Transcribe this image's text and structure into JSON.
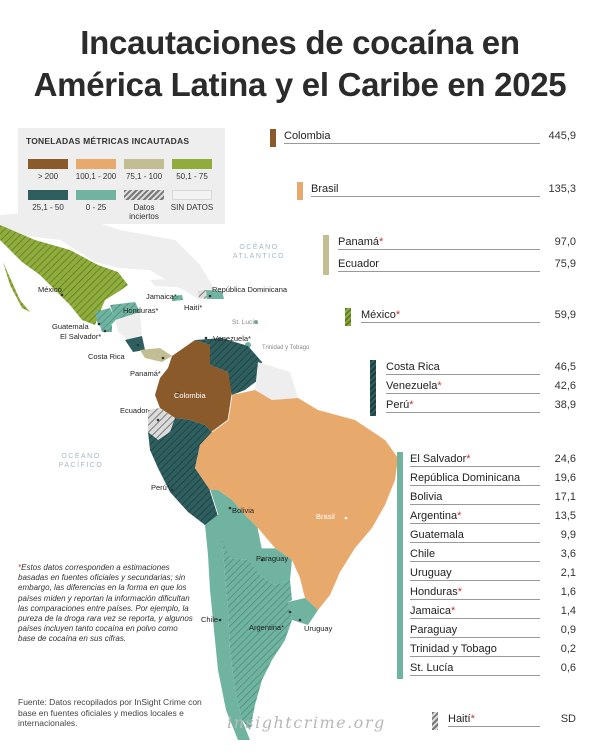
{
  "title": {
    "line1": "Incautaciones de cocaína en",
    "line2": "América Latina y el Caribe en 2025"
  },
  "legend": {
    "title": "TONELADAS MÉTRICAS INCAUTADAS",
    "items": [
      {
        "label": "> 200",
        "color": "#8b5a2b"
      },
      {
        "label": "100,1 - 200",
        "color": "#e8aa6c"
      },
      {
        "label": "75,1 - 100",
        "color": "#c2bd92"
      },
      {
        "label": "50,1 - 75",
        "color": "#8fac3c"
      },
      {
        "label": "25,1 - 50",
        "color": "#2f5e5f"
      },
      {
        "label": "0 - 25",
        "color": "#6fb3a0"
      },
      {
        "label": "Datos inciertos",
        "pattern": "hatch"
      },
      {
        "label": "SIN DATOS",
        "color": "#f2f2f2"
      }
    ]
  },
  "oceans": {
    "atlantic": "OCÉANO ATLÁNTICO",
    "pacific": "OCÉANO PACÍFICO"
  },
  "map_labels": {
    "mexico": "México",
    "jamaica": "Jamaica*",
    "rep_dom": "República Dominicana",
    "honduras": "Honduras*",
    "haiti": "Haití*",
    "guatemala": "Guatemala",
    "el_salvador": "El Salvador*",
    "st_lucia": "St. Lucía",
    "venezuela": "Venezuela*",
    "trinidad": "Trinidad y Tobago",
    "costa_rica": "Costa Rica",
    "panama": "Panamá*",
    "colombia": "Colombia",
    "ecuador": "Ecuador",
    "peru": "Perú*",
    "brasil": "Brasil",
    "bolivia": "Bolivia",
    "paraguay": "Paraguay",
    "chile": "Chile",
    "argentina": "Argentina*",
    "uruguay": "Uruguay"
  },
  "ranking": [
    {
      "country": "Colombia",
      "asterisk": false,
      "value": "445,9",
      "color": "#8b5a2b"
    },
    {
      "country": "Brasil",
      "asterisk": false,
      "value": "135,3",
      "color": "#e8aa6c"
    },
    {
      "country": "Panamá",
      "asterisk": true,
      "value": "97,0",
      "color": "#c2bd92"
    },
    {
      "country": "Ecuador",
      "asterisk": false,
      "value": "75,9",
      "color": "#c2bd92"
    },
    {
      "country": "México",
      "asterisk": true,
      "value": "59,9",
      "color": "#8fac3c"
    },
    {
      "country": "Costa Rica",
      "asterisk": false,
      "value": "46,5",
      "color": "#2f5e5f"
    },
    {
      "country": "Venezuela",
      "asterisk": true,
      "value": "42,6",
      "color": "#2f5e5f"
    },
    {
      "country": "Perú",
      "asterisk": true,
      "value": "38,9",
      "color": "#2f5e5f"
    },
    {
      "country": "El Salvador",
      "asterisk": true,
      "value": "24,6",
      "color": "#6fb3a0"
    },
    {
      "country": "República Dominicana",
      "asterisk": false,
      "value": "19,6",
      "color": "#6fb3a0"
    },
    {
      "country": "Bolivia",
      "asterisk": false,
      "value": "17,1",
      "color": "#6fb3a0"
    },
    {
      "country": "Argentina",
      "asterisk": true,
      "value": "13,5",
      "color": "#6fb3a0"
    },
    {
      "country": "Guatemala",
      "asterisk": false,
      "value": "9,9",
      "color": "#6fb3a0"
    },
    {
      "country": "Chile",
      "asterisk": false,
      "value": "3,6",
      "color": "#6fb3a0"
    },
    {
      "country": "Uruguay",
      "asterisk": false,
      "value": "2,1",
      "color": "#6fb3a0"
    },
    {
      "country": "Honduras",
      "asterisk": true,
      "value": "1,6",
      "color": "#6fb3a0"
    },
    {
      "country": "Jamaica",
      "asterisk": true,
      "value": "1,4",
      "color": "#6fb3a0"
    },
    {
      "country": "Paraguay",
      "asterisk": false,
      "value": "0,9",
      "color": "#6fb3a0"
    },
    {
      "country": "Trinidad y Tobago",
      "asterisk": false,
      "value": "0,2",
      "color": "#6fb3a0"
    },
    {
      "country": "St. Lucía",
      "asterisk": false,
      "value": "0,6",
      "color": "#6fb3a0"
    },
    {
      "country": "Haití",
      "asterisk": true,
      "value": "SD",
      "color": "hatch"
    }
  ],
  "note": "*Estos datos corresponden a estimaciones basadas en fuentes oficiales y secundarias; sin embargo, las diferencias en la forma en que los países miden y reportan la información dificultan las comparaciones entre países. Por ejemplo, la pureza de la droga rara vez se reporta, y algunos países incluyen tanto cocaína en polvo como base de cocaína en sus cifras.",
  "source": "Fuente: Datos recopilados por InSight Crime con base en fuentes oficiales y medios locales e internacionales.",
  "brand": "insightcrime.org"
}
